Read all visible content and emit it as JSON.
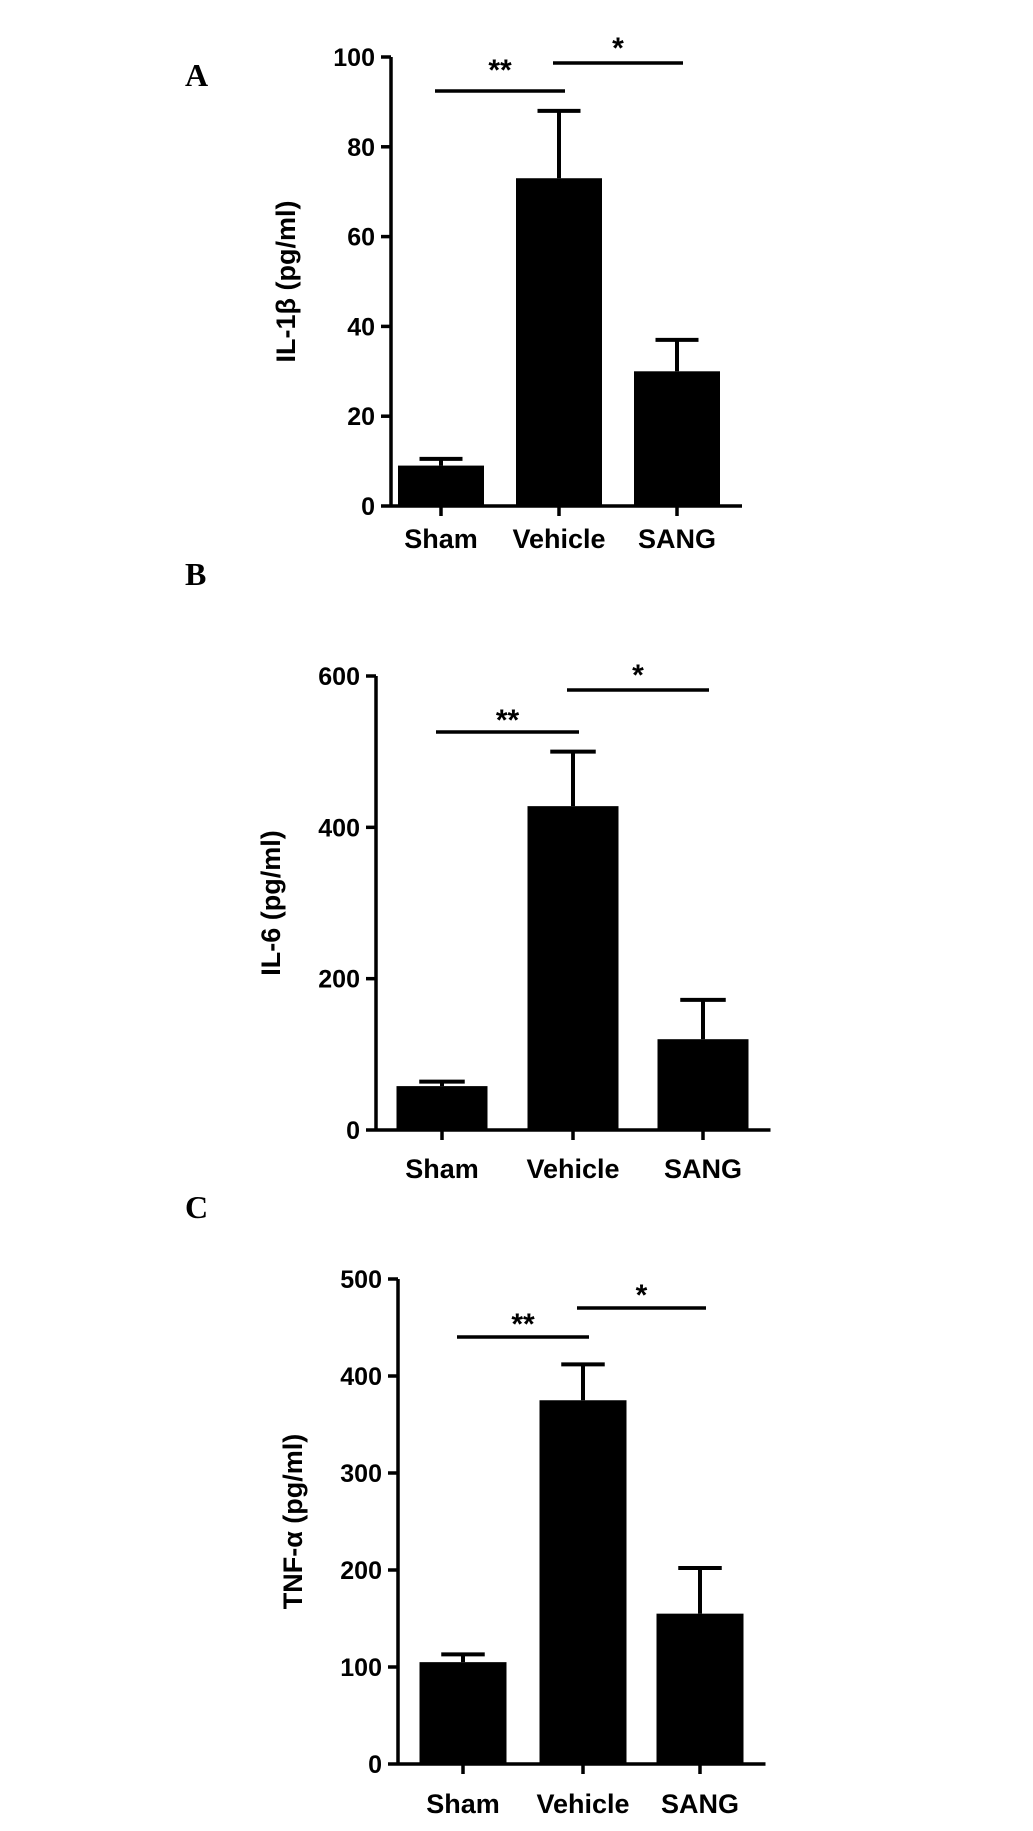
{
  "chart_data": [
    {
      "type": "bar",
      "panel_label": "A",
      "categories": [
        "Sham",
        "Vehicle",
        "SANG"
      ],
      "values": [
        9,
        73,
        30
      ],
      "errors": [
        1.5,
        15,
        7
      ],
      "ylabel": "IL-1β (pg/ml)",
      "ylim": [
        0,
        100
      ],
      "yticks": [
        "0",
        "20",
        "40",
        "60",
        "80",
        "100"
      ],
      "significance": [
        {
          "from": "Sham",
          "to": "Vehicle",
          "label": "**"
        },
        {
          "from": "Vehicle",
          "to": "SANG",
          "label": "*"
        }
      ]
    },
    {
      "type": "bar",
      "panel_label": "B",
      "categories": [
        "Sham",
        "Vehicle",
        "SANG"
      ],
      "values": [
        58,
        428,
        120
      ],
      "errors": [
        6,
        72,
        52
      ],
      "ylabel": "IL-6 (pg/ml)",
      "ylim": [
        0,
        600
      ],
      "yticks": [
        "0",
        "200",
        "400",
        "600"
      ],
      "significance": [
        {
          "from": "Sham",
          "to": "Vehicle",
          "label": "**"
        },
        {
          "from": "Vehicle",
          "to": "SANG",
          "label": "*"
        }
      ]
    },
    {
      "type": "bar",
      "panel_label": "C",
      "categories": [
        "Sham",
        "Vehicle",
        "SANG"
      ],
      "values": [
        105,
        375,
        155
      ],
      "errors": [
        8,
        37,
        47
      ],
      "ylabel": "TNF-α (pg/ml)",
      "ylim": [
        0,
        500
      ],
      "yticks": [
        "0",
        "100",
        "200",
        "300",
        "400",
        "500"
      ],
      "significance": [
        {
          "from": "Sham",
          "to": "Vehicle",
          "label": "**"
        },
        {
          "from": "Vehicle",
          "to": "SANG",
          "label": "*"
        }
      ]
    }
  ]
}
